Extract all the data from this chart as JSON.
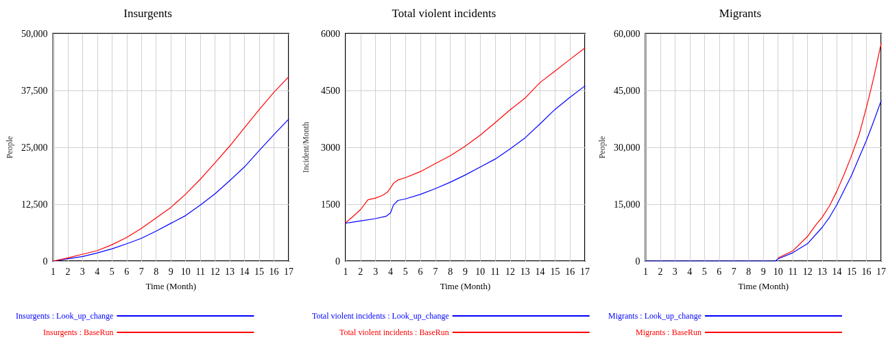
{
  "chart_data": [
    {
      "type": "line",
      "title": "Insurgents",
      "xlabel": "Time (Month)",
      "ylabel": "People",
      "xlim": [
        1,
        17
      ],
      "xticks": [
        1,
        2,
        3,
        4,
        5,
        6,
        7,
        8,
        9,
        10,
        11,
        12,
        13,
        14,
        15,
        16,
        17
      ],
      "ylim": [
        0,
        50000
      ],
      "yticks": [
        {
          "value": 0,
          "label": "0"
        },
        {
          "value": 12500,
          "label": "12,500"
        },
        {
          "value": 25000,
          "label": "25,000"
        },
        {
          "value": 37500,
          "label": "37,500"
        },
        {
          "value": 50000,
          "label": "50,000"
        }
      ],
      "grid": true,
      "legend": "bottom",
      "line_style": "solid",
      "marker": "none",
      "series": [
        {
          "name": "Insurgents : Look_up_change",
          "color": "#0000ff",
          "x": [
            1,
            2,
            3,
            4,
            5,
            6,
            7,
            8,
            9,
            10,
            11,
            12,
            13,
            14,
            15,
            16,
            17
          ],
          "values": [
            0,
            500,
            1000,
            1800,
            2700,
            3800,
            5000,
            6600,
            8300,
            10000,
            12300,
            14800,
            17700,
            20700,
            24300,
            27800,
            31200
          ]
        },
        {
          "name": "Insurgents : BaseRun",
          "color": "#ff0000",
          "x": [
            1,
            2,
            3,
            4,
            5,
            6,
            7,
            8,
            9,
            10,
            11,
            12,
            13,
            14,
            15,
            16,
            17
          ],
          "values": [
            0,
            700,
            1500,
            2300,
            3600,
            5200,
            7200,
            9500,
            11800,
            14700,
            18000,
            21600,
            25300,
            29300,
            33300,
            37100,
            40500
          ]
        }
      ]
    },
    {
      "type": "line",
      "title": "Total violent incidents",
      "xlabel": "Time (Month)",
      "ylabel": "Incident/Month",
      "xlim": [
        1,
        17
      ],
      "xticks": [
        1,
        2,
        3,
        4,
        5,
        6,
        7,
        8,
        9,
        10,
        11,
        12,
        13,
        14,
        15,
        16,
        17
      ],
      "ylim": [
        0,
        6000
      ],
      "yticks": [
        0,
        1500,
        3000,
        4500,
        6000
      ],
      "grid": true,
      "legend": "bottom",
      "line_style": "solid",
      "marker": "none",
      "series": [
        {
          "name": "Total violent incidents : Look_up_change",
          "color": "#0000ff",
          "x": [
            1,
            2,
            3,
            3.7,
            4,
            4.2,
            4.5,
            5,
            6,
            7,
            8,
            9,
            10,
            11,
            12,
            13,
            14,
            15,
            16,
            17
          ],
          "values": [
            1000,
            1060,
            1120,
            1180,
            1270,
            1480,
            1600,
            1640,
            1760,
            1910,
            2080,
            2270,
            2480,
            2690,
            2960,
            3250,
            3620,
            4000,
            4320,
            4620
          ]
        },
        {
          "name": "Total violent incidents : BaseRun",
          "color": "#ff0000",
          "x": [
            1,
            1.5,
            2,
            2.5,
            3,
            3.5,
            3.8,
            4,
            4.2,
            4.5,
            5,
            6,
            7,
            8,
            9,
            10,
            11,
            12,
            13,
            14,
            15,
            16,
            17
          ],
          "values": [
            1010,
            1180,
            1360,
            1620,
            1660,
            1740,
            1820,
            1930,
            2050,
            2140,
            2200,
            2360,
            2570,
            2780,
            3030,
            3320,
            3650,
            3990,
            4300,
            4710,
            5010,
            5320,
            5620
          ]
        }
      ]
    },
    {
      "type": "line",
      "title": "Migrants",
      "xlabel": "Time (Month)",
      "ylabel": "People",
      "xlim": [
        1,
        17
      ],
      "xticks": [
        1,
        2,
        3,
        4,
        5,
        6,
        7,
        8,
        9,
        10,
        11,
        12,
        13,
        14,
        15,
        16,
        17
      ],
      "ylim": [
        0,
        60000
      ],
      "yticks": [
        {
          "value": 0,
          "label": "0"
        },
        {
          "value": 15000,
          "label": "15,000"
        },
        {
          "value": 30000,
          "label": "30,000"
        },
        {
          "value": 45000,
          "label": "45,000"
        },
        {
          "value": 60000,
          "label": "60,000"
        }
      ],
      "grid": true,
      "legend": "bottom",
      "line_style": "solid",
      "marker": "none",
      "series": [
        {
          "name": "Migrants : Look_up_change",
          "color": "#0000ff",
          "x": [
            1,
            9.8,
            10,
            11,
            12,
            13,
            13.5,
            14,
            14.5,
            15,
            15.5,
            16,
            16.5,
            17
          ],
          "values": [
            0,
            0,
            600,
            2200,
            4600,
            8900,
            11600,
            14900,
            18800,
            22700,
            27300,
            31800,
            36900,
            42300
          ]
        },
        {
          "name": "Migrants : BaseRun",
          "color": "#ff0000",
          "x": [
            10,
            11,
            12,
            12.5,
            13,
            13.5,
            14,
            14.5,
            15,
            15.5,
            16,
            16.5,
            17
          ],
          "values": [
            800,
            2700,
            6500,
            9200,
            11600,
            14600,
            18500,
            23000,
            27900,
            33300,
            40500,
            48400,
            57400
          ]
        }
      ]
    }
  ]
}
